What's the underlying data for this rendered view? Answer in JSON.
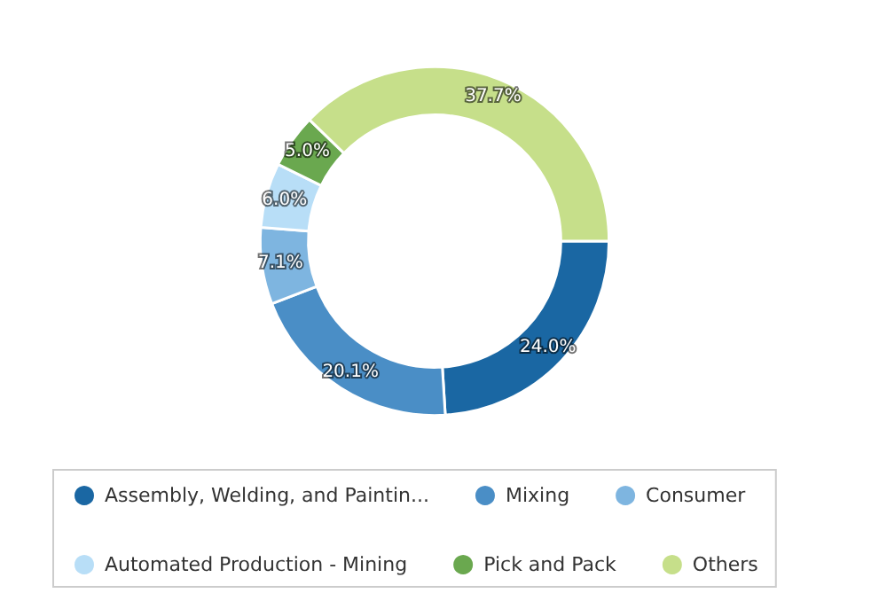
{
  "chart_data": {
    "type": "donut",
    "categories": [
      "Assembly, Welding, and Paintin...",
      "Mixing",
      "Consumer",
      "Automated Production - Mining",
      "Pick and Pack",
      "Others"
    ],
    "values": [
      24.0,
      20.1,
      7.1,
      6.0,
      5.0,
      37.7
    ],
    "value_labels": [
      "24.0%",
      "20.1%",
      "7.1%",
      "6.0%",
      "5.0%",
      "37.7%"
    ],
    "colors": [
      "#1a67a3",
      "#4a8ec6",
      "#7eb5e0",
      "#b8def7",
      "#6aa84f",
      "#c6df8a"
    ],
    "legend": "bottom"
  }
}
